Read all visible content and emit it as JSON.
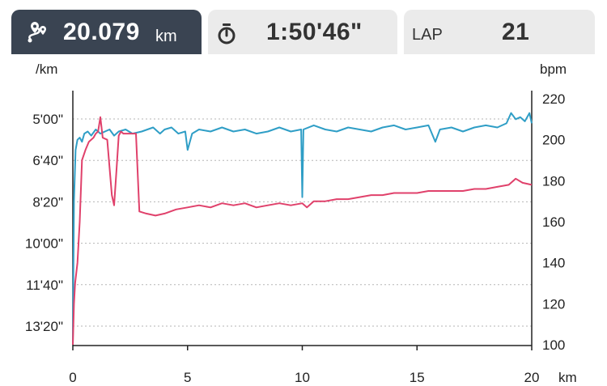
{
  "header": {
    "distance": {
      "value": "20.079",
      "unit": "km",
      "icon": "route-pin-icon"
    },
    "time": {
      "value": "1:50'46\"",
      "icon": "stopwatch-icon"
    },
    "lap": {
      "label": "LAP",
      "value": "21"
    }
  },
  "colors": {
    "header_active": "#3a4452",
    "header_inactive": "#ebebeb",
    "pace_series": "#2f9ec6",
    "heart_rate_series": "#e0416b",
    "grid": "#b5b5b5"
  },
  "chart_data": {
    "type": "line",
    "xlabel": "km",
    "xlim": [
      0,
      20
    ],
    "x_ticks": [
      0,
      5,
      10,
      15,
      20
    ],
    "y_left": {
      "unit": "/km",
      "ticks": [
        "5'00\"",
        "6'40\"",
        "8'20\"",
        "10'00\"",
        "11'40\"",
        "13'20\""
      ],
      "tick_seconds": [
        300,
        400,
        500,
        600,
        700,
        800
      ],
      "inverted": true
    },
    "y_right": {
      "unit": "bpm",
      "ticks": [
        100,
        120,
        140,
        160,
        180,
        200,
        220
      ],
      "ylim": [
        100,
        220
      ]
    },
    "grid": "horizontal dotted",
    "series": [
      {
        "axis": "right",
        "color": "#2f9ec6",
        "x": [
          0,
          0.05,
          0.12,
          0.2,
          0.3,
          0.4,
          0.5,
          0.65,
          0.8,
          1.0,
          1.2,
          1.4,
          1.6,
          1.8,
          2.0,
          2.3,
          2.6,
          3.0,
          3.5,
          3.8,
          4.0,
          4.3,
          4.6,
          4.9,
          5.0,
          5.2,
          5.5,
          6.0,
          6.5,
          7.0,
          7.5,
          8.0,
          8.5,
          9.0,
          9.5,
          9.95,
          10.0,
          10.05,
          10.5,
          11.0,
          11.5,
          12.0,
          12.5,
          13.0,
          13.5,
          14.0,
          14.5,
          15.0,
          15.5,
          15.8,
          16.0,
          16.5,
          17.0,
          17.5,
          18.0,
          18.5,
          18.9,
          19.1,
          19.3,
          19.5,
          19.7,
          19.9,
          20.0
        ],
        "y": [
          100,
          170,
          195,
          200,
          201,
          199,
          203,
          204,
          202,
          205,
          203,
          204,
          205,
          202,
          204,
          205,
          203,
          204,
          206,
          203,
          205,
          206,
          203,
          204,
          195,
          203,
          205,
          204,
          206,
          204,
          205,
          203,
          204,
          206,
          204,
          205,
          172,
          205,
          207,
          205,
          204,
          206,
          205,
          204,
          206,
          207,
          205,
          206,
          207,
          199,
          205,
          206,
          204,
          206,
          207,
          206,
          208,
          213,
          210,
          211,
          209,
          213,
          208
        ]
      },
      {
        "axis": "right",
        "color": "#e0416b",
        "x": [
          0,
          0.05,
          0.1,
          0.2,
          0.3,
          0.4,
          0.55,
          0.7,
          0.9,
          1.0,
          1.1,
          1.2,
          1.3,
          1.5,
          1.7,
          1.8,
          1.9,
          2.0,
          2.1,
          2.2,
          2.4,
          2.6,
          2.75,
          2.9,
          3.2,
          3.6,
          4.0,
          4.5,
          5.0,
          5.5,
          6.0,
          6.5,
          7.0,
          7.5,
          8.0,
          8.5,
          9.0,
          9.5,
          10.0,
          10.2,
          10.5,
          11.0,
          11.5,
          12.0,
          12.5,
          13.0,
          13.5,
          14.0,
          14.5,
          15.0,
          15.5,
          16.0,
          16.5,
          17.0,
          17.5,
          18.0,
          18.5,
          19.0,
          19.3,
          19.6,
          20.0
        ],
        "y": [
          100,
          120,
          130,
          140,
          160,
          190,
          195,
          199,
          201,
          203,
          204,
          211,
          201,
          200,
          173,
          168,
          185,
          202,
          204,
          203,
          203,
          203,
          203,
          165,
          164,
          163,
          164,
          166,
          167,
          168,
          167,
          169,
          168,
          169,
          167,
          168,
          169,
          168,
          169,
          167,
          170,
          170,
          171,
          171,
          172,
          173,
          173,
          174,
          174,
          174,
          175,
          175,
          175,
          175,
          176,
          176,
          177,
          178,
          181,
          179,
          178
        ]
      }
    ]
  }
}
